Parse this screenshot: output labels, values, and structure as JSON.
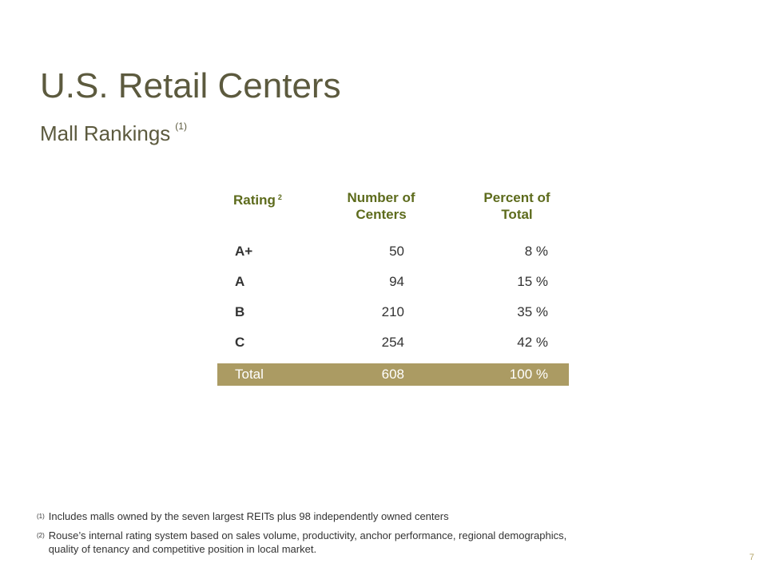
{
  "header": {
    "title": "U.S. Retail Centers",
    "subtitle": "Mall Rankings",
    "subtitle_note": "(1)"
  },
  "table": {
    "columns": {
      "rating": "Rating",
      "rating_note": "2",
      "count_line1": "Number of",
      "count_line2": "Centers",
      "pct_line1": "Percent of",
      "pct_line2": "Total"
    },
    "rows": [
      {
        "rating": "A+",
        "count": "50",
        "percent": "8 %"
      },
      {
        "rating": "A",
        "count": "94",
        "percent": "15 %"
      },
      {
        "rating": "B",
        "count": "210",
        "percent": "35 %"
      },
      {
        "rating": "C",
        "count": "254",
        "percent": "42 %"
      }
    ],
    "total": {
      "label": "Total",
      "count": "608",
      "percent": "100 %"
    },
    "colors": {
      "header_text": "#5d6b1c",
      "total_band": "#ab9b63"
    }
  },
  "footnotes": [
    {
      "marker": "(1)",
      "line1": "Includes malls owned by the seven largest REITs plus 98 independently owned centers",
      "line2": ""
    },
    {
      "marker": "(2)",
      "line1": "Rouse’s internal rating system based on sales volume, productivity, anchor performance, regional demographics,",
      "line2": "quality of tenancy and competitive position in local market."
    }
  ],
  "page_number": "7"
}
